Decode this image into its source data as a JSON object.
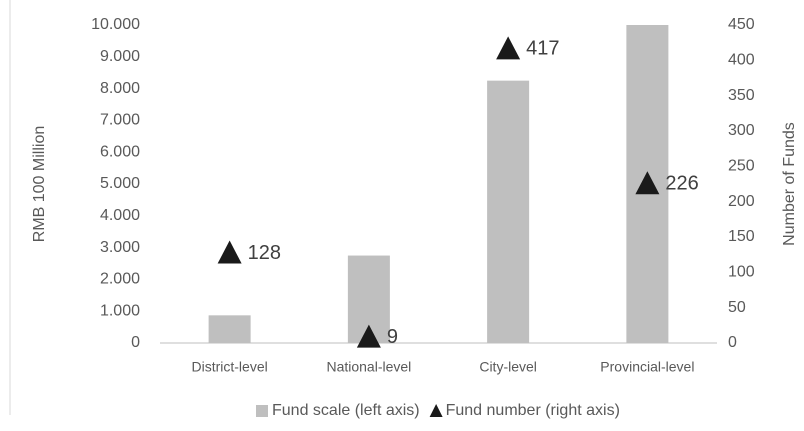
{
  "chart_data": {
    "type": "bar",
    "y_label": "RMB 100 Million",
    "y2_label": "Number of Funds",
    "categories": [
      "District-level",
      "National-level",
      "City-level",
      "Provincial-level"
    ],
    "series": [
      {
        "name": "Fund scale (left axis)",
        "type": "bar",
        "color": "#bfbfbf",
        "values": [
          870,
          2750,
          8250,
          10000
        ]
      },
      {
        "name": "Fund number (right axis)",
        "type": "scatter",
        "axis": "y2",
        "color": "#1a1a1a",
        "values": [
          128,
          9,
          417,
          226
        ]
      }
    ],
    "ylim": [
      0,
      10000
    ],
    "yticks": [
      0,
      {
        "value": 1000,
        "label": "1.000"
      },
      {
        "value": 2000,
        "label": "2.000"
      },
      {
        "value": 3000,
        "label": "3.000"
      },
      {
        "value": 4000,
        "label": "4.000"
      },
      {
        "value": 5000,
        "label": "5.000"
      },
      {
        "value": 6000,
        "label": "6.000"
      },
      {
        "value": 7000,
        "label": "7.000"
      },
      {
        "value": 8000,
        "label": "8.000"
      },
      {
        "value": 9000,
        "label": "9.000"
      },
      {
        "value": 10000,
        "label": "10.000"
      }
    ],
    "y2lim": [
      0,
      450
    ],
    "y2ticks": [
      0,
      50,
      100,
      150,
      200,
      250,
      300,
      350,
      400,
      450
    ],
    "grid": false,
    "legend": "bottom"
  }
}
